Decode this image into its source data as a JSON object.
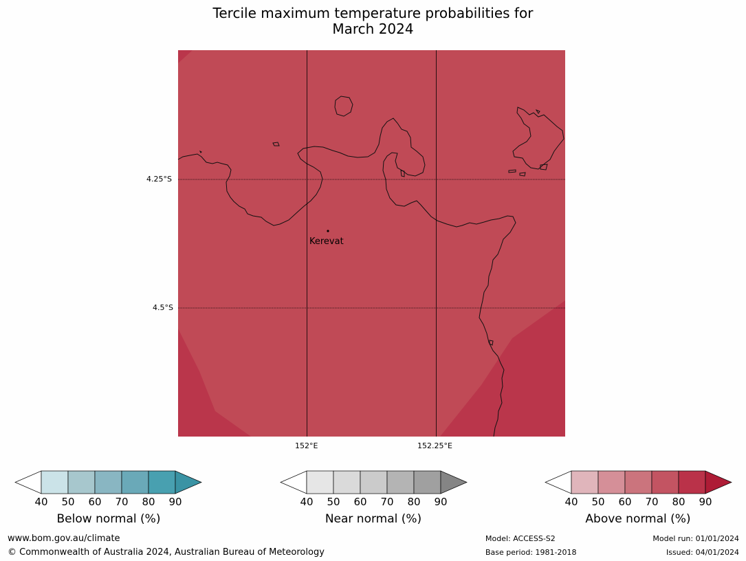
{
  "title": {
    "line1": "Tercile maximum temperature probabilities for",
    "line2": "March 2024"
  },
  "map": {
    "fill_main": "#c04a56",
    "fill_high": "#ba364b",
    "coast_color": "#111111",
    "lat_labels": [
      "4.25°S",
      "4.5°S"
    ],
    "lon_labels": [
      "152°E",
      "152.25°E"
    ],
    "place": "Kerevat"
  },
  "colorbars": [
    {
      "name": "below",
      "label": "Below normal (%)",
      "ticks": [
        "40",
        "50",
        "60",
        "70",
        "80",
        "90"
      ],
      "colors": [
        "#cbe3e8",
        "#a7c7cd",
        "#89b6c2",
        "#6aa9b8",
        "#48a0b0"
      ],
      "extend_color": "#3a93a4"
    },
    {
      "name": "near",
      "label": "Near normal (%)",
      "ticks": [
        "40",
        "50",
        "60",
        "70",
        "80",
        "90"
      ],
      "colors": [
        "#e6e6e6",
        "#dadada",
        "#cbcbcb",
        "#b4b4b4",
        "#a0a0a0"
      ],
      "extend_color": "#858585"
    },
    {
      "name": "above",
      "label": "Above normal (%)",
      "ticks": [
        "40",
        "50",
        "60",
        "70",
        "80",
        "90"
      ],
      "colors": [
        "#e0b5bb",
        "#d58f98",
        "#cb747d",
        "#c35462",
        "#ba3249"
      ],
      "extend_color": "#ae1c36"
    }
  ],
  "footer": {
    "website": "www.bom.gov.au/climate",
    "copyright": "© Commonwealth of Australia 2024, Australian Bureau of Meteorology",
    "model": "Model: ACCESS-S2",
    "base_period": "Base period: 1981-2018",
    "model_run": "Model run: 01/01/2024",
    "issued": "Issued: 04/01/2024"
  }
}
